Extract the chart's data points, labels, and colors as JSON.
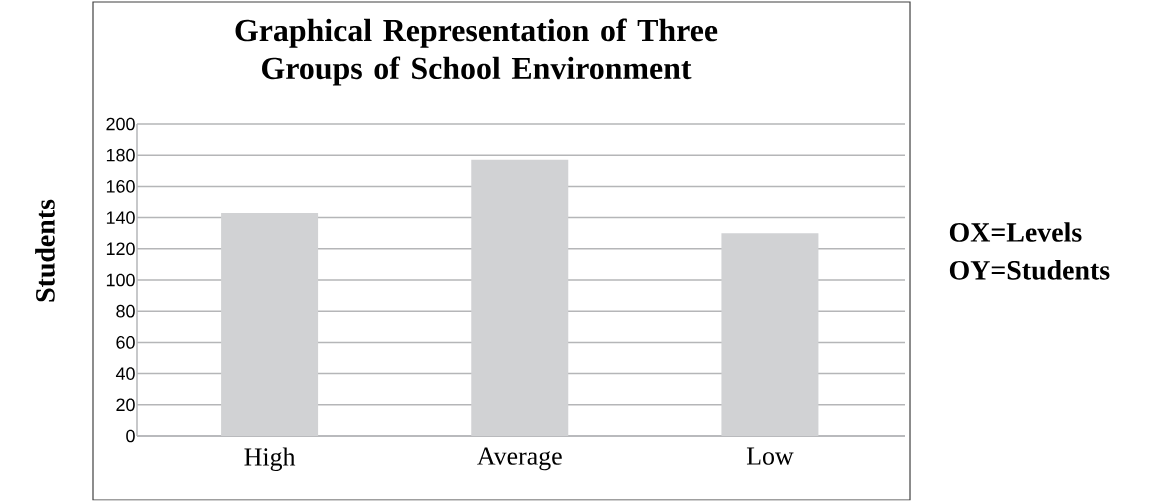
{
  "chart_data": {
    "type": "bar",
    "title": "Graphical Representation of Three Groups of School Environment",
    "ylabel": "Students",
    "categories": [
      "High",
      "Average",
      "Low"
    ],
    "values": [
      143,
      177,
      130
    ],
    "color": "#d1d2d4",
    "ylim": [
      0,
      200
    ],
    "yticks": [
      0,
      20,
      40,
      60,
      80,
      100,
      120,
      140,
      160,
      180,
      200
    ],
    "grid": "y",
    "annotations": [
      "OX=Levels",
      "OY=Students"
    ]
  }
}
